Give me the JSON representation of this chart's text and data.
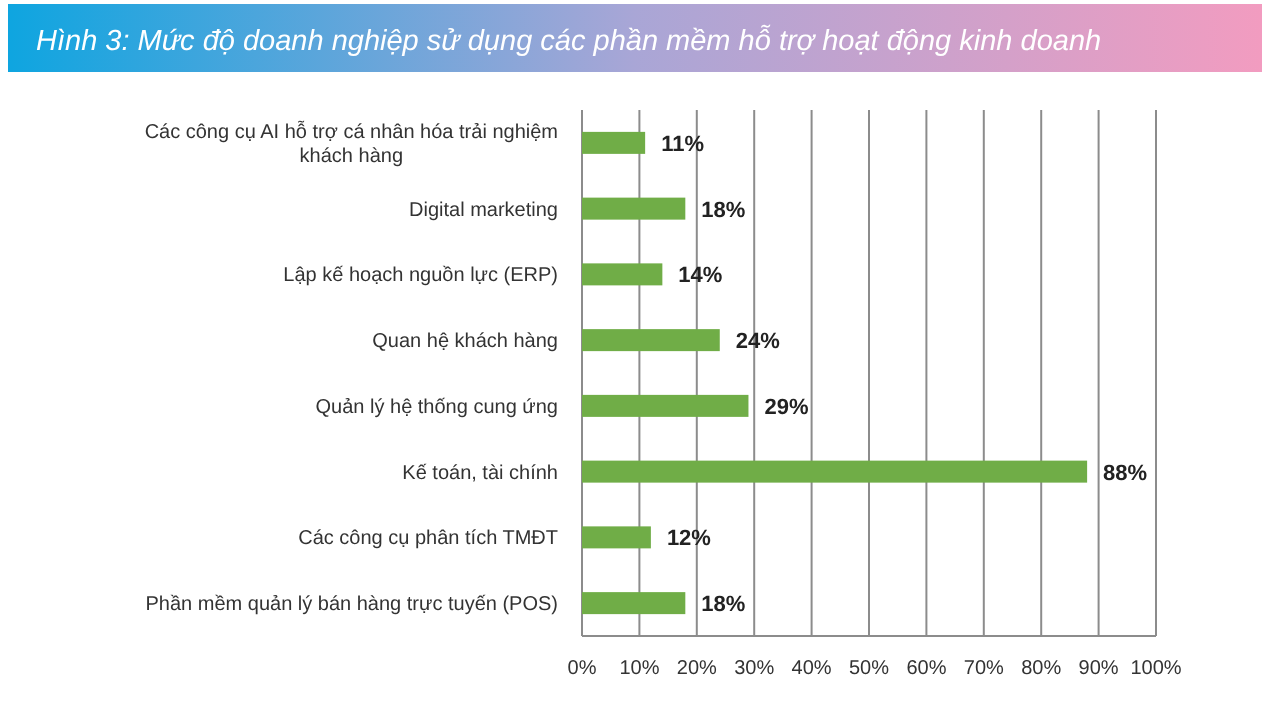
{
  "chart_data": {
    "type": "bar",
    "orientation": "horizontal",
    "title": "Hình 3: Mức độ doanh nghiệp sử dụng các phần mềm hỗ trợ hoạt động kinh doanh",
    "categories": [
      "Các công cụ AI hỗ trợ cá nhân hóa trải nghiệm khách hàng",
      "Digital marketing",
      "Lập kế hoạch nguồn lực (ERP)",
      "Quan hệ khách hàng",
      "Quản lý hệ thống cung ứng",
      "Kế toán, tài chính",
      "Các công cụ phân tích TMĐT",
      "Phần mềm quản lý bán hàng trực tuyến (POS)"
    ],
    "values": [
      11,
      18,
      14,
      24,
      29,
      88,
      12,
      18
    ],
    "value_labels": [
      "11%",
      "18%",
      "14%",
      "24%",
      "29%",
      "88%",
      "12%",
      "18%"
    ],
    "color": "#70ad47",
    "xlim": [
      0,
      100
    ],
    "xticks": [
      {
        "value": 0,
        "label": "0%"
      },
      {
        "value": 10,
        "label": "10%"
      },
      {
        "value": 20,
        "label": "20%"
      },
      {
        "value": 30,
        "label": "30%"
      },
      {
        "value": 40,
        "label": "40%"
      },
      {
        "value": 50,
        "label": "50%"
      },
      {
        "value": 60,
        "label": "60%"
      },
      {
        "value": 70,
        "label": "70%"
      },
      {
        "value": 80,
        "label": "80%"
      },
      {
        "value": 90,
        "label": "90%"
      },
      {
        "value": 100,
        "label": "100%"
      }
    ],
    "grid": "x"
  }
}
